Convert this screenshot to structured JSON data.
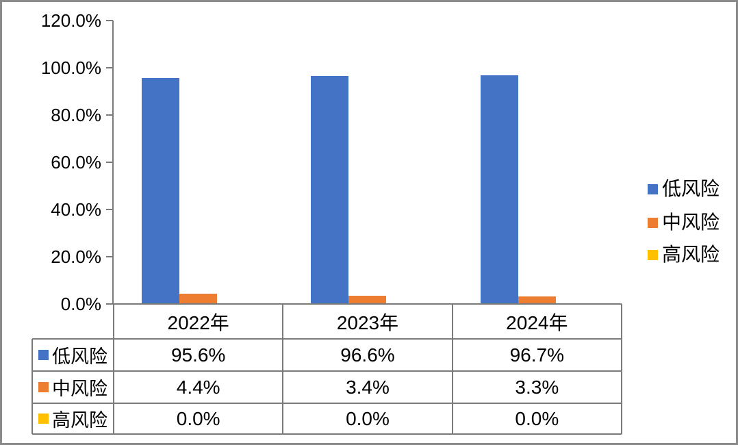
{
  "frame": {
    "border_color": "#8a8a8a",
    "background": "#ffffff"
  },
  "colors": {
    "axis": "#7a7a7a",
    "table_border": "#7a7a7a",
    "text": "#000000",
    "series_low": "#4472C4",
    "series_mid": "#ED7D31",
    "series_high": "#FFC000"
  },
  "chart_data": {
    "type": "bar",
    "title": "",
    "xlabel": "",
    "ylabel": "",
    "grid": false,
    "categories": [
      "2022年",
      "2023年",
      "2024年"
    ],
    "series": [
      {
        "name": "低风险",
        "color": "#4472C4",
        "values": [
          95.6,
          96.6,
          96.7
        ],
        "labels": [
          "95.6%",
          "96.6%",
          "96.7%"
        ]
      },
      {
        "name": "中风险",
        "color": "#ED7D31",
        "values": [
          4.4,
          3.4,
          3.3
        ],
        "labels": [
          "4.4%",
          "3.4%",
          "3.3%"
        ]
      },
      {
        "name": "高风险",
        "color": "#FFC000",
        "values": [
          0.0,
          0.0,
          0.0
        ],
        "labels": [
          "0.0%",
          "0.0%",
          "0.0%"
        ]
      }
    ],
    "y_axis": {
      "min": 0,
      "max": 120,
      "step": 20,
      "tick_labels": [
        "120.0%",
        "100.0%",
        "80.0%",
        "60.0%",
        "40.0%",
        "20.0%",
        "0.0%"
      ]
    },
    "legend": {
      "position": "right",
      "entries": [
        "低风险",
        "中风险",
        "高风险"
      ]
    },
    "data_table": {
      "shown": true,
      "column_headers": [
        "2022年",
        "2023年",
        "2024年"
      ],
      "row_headers": [
        "低风险",
        "中风险",
        "高风险"
      ],
      "rows": [
        [
          "95.6%",
          "96.6%",
          "96.7%"
        ],
        [
          "4.4%",
          "3.4%",
          "3.3%"
        ],
        [
          "0.0%",
          "0.0%",
          "0.0%"
        ]
      ]
    }
  }
}
